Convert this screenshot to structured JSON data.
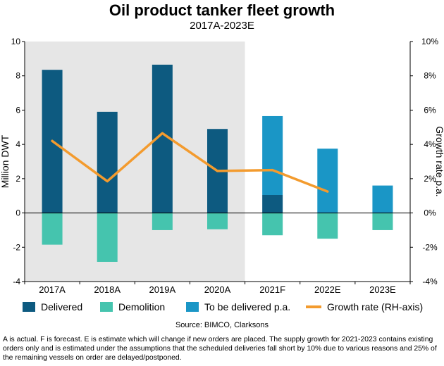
{
  "title": "Oil product tanker fleet growth",
  "subtitle": "2017A-2023E",
  "source": "Source: BIMCO, Clarksons",
  "footnote": "A is actual. F is forecast. E is estimate which will change if new orders are placed. The supply growth for 2021-2023 contains existing orders only and is estimated under the assumptions that the scheduled deliveries fall short by 10% due to various reasons and 25% of the remaining vessels on order are delayed/postponed.",
  "colors": {
    "delivered": "#0d5a80",
    "demolition": "#45c4ae",
    "to_be_delivered": "#1a96c6",
    "growth": "#f39b2e",
    "shade": "#e6e6e6"
  },
  "legend": {
    "delivered": "Delivered",
    "demolition": "Demolition",
    "to_be_delivered": "To be delivered p.a.",
    "growth": "Growth rate (RH-axis)"
  },
  "chart_data": {
    "type": "bar",
    "categories": [
      "2017A",
      "2018A",
      "2019A",
      "2020A",
      "2021F",
      "2022E",
      "2023E"
    ],
    "ylabel": "Million DWT",
    "y2label": "Growth rate p.a.",
    "ylim": [
      -4,
      10
    ],
    "yticks": [
      "-4",
      "-2",
      "0",
      "2",
      "4",
      "6",
      "8",
      "10"
    ],
    "y2lim": [
      -4,
      10
    ],
    "y2ticks": [
      "-4%",
      "-2%",
      "0%",
      "2%",
      "4%",
      "6%",
      "8%",
      "10%"
    ],
    "shaded_categories": [
      "2017A",
      "2018A",
      "2019A",
      "2020A"
    ],
    "series": [
      {
        "name": "Delivered",
        "values": [
          8.35,
          5.9,
          8.65,
          4.9,
          1.05,
          0,
          0
        ]
      },
      {
        "name": "Demolition",
        "values": [
          -1.85,
          -2.85,
          -1.0,
          -0.95,
          -1.3,
          -1.5,
          -1.0
        ]
      },
      {
        "name": "To be delivered p.a.",
        "values": [
          0,
          0,
          0,
          0,
          4.6,
          3.75,
          1.6
        ]
      },
      {
        "name": "Growth rate (RH-axis)",
        "axis": "right",
        "values": [
          4.2,
          1.85,
          4.65,
          2.45,
          2.5,
          1.25,
          null
        ]
      }
    ]
  }
}
